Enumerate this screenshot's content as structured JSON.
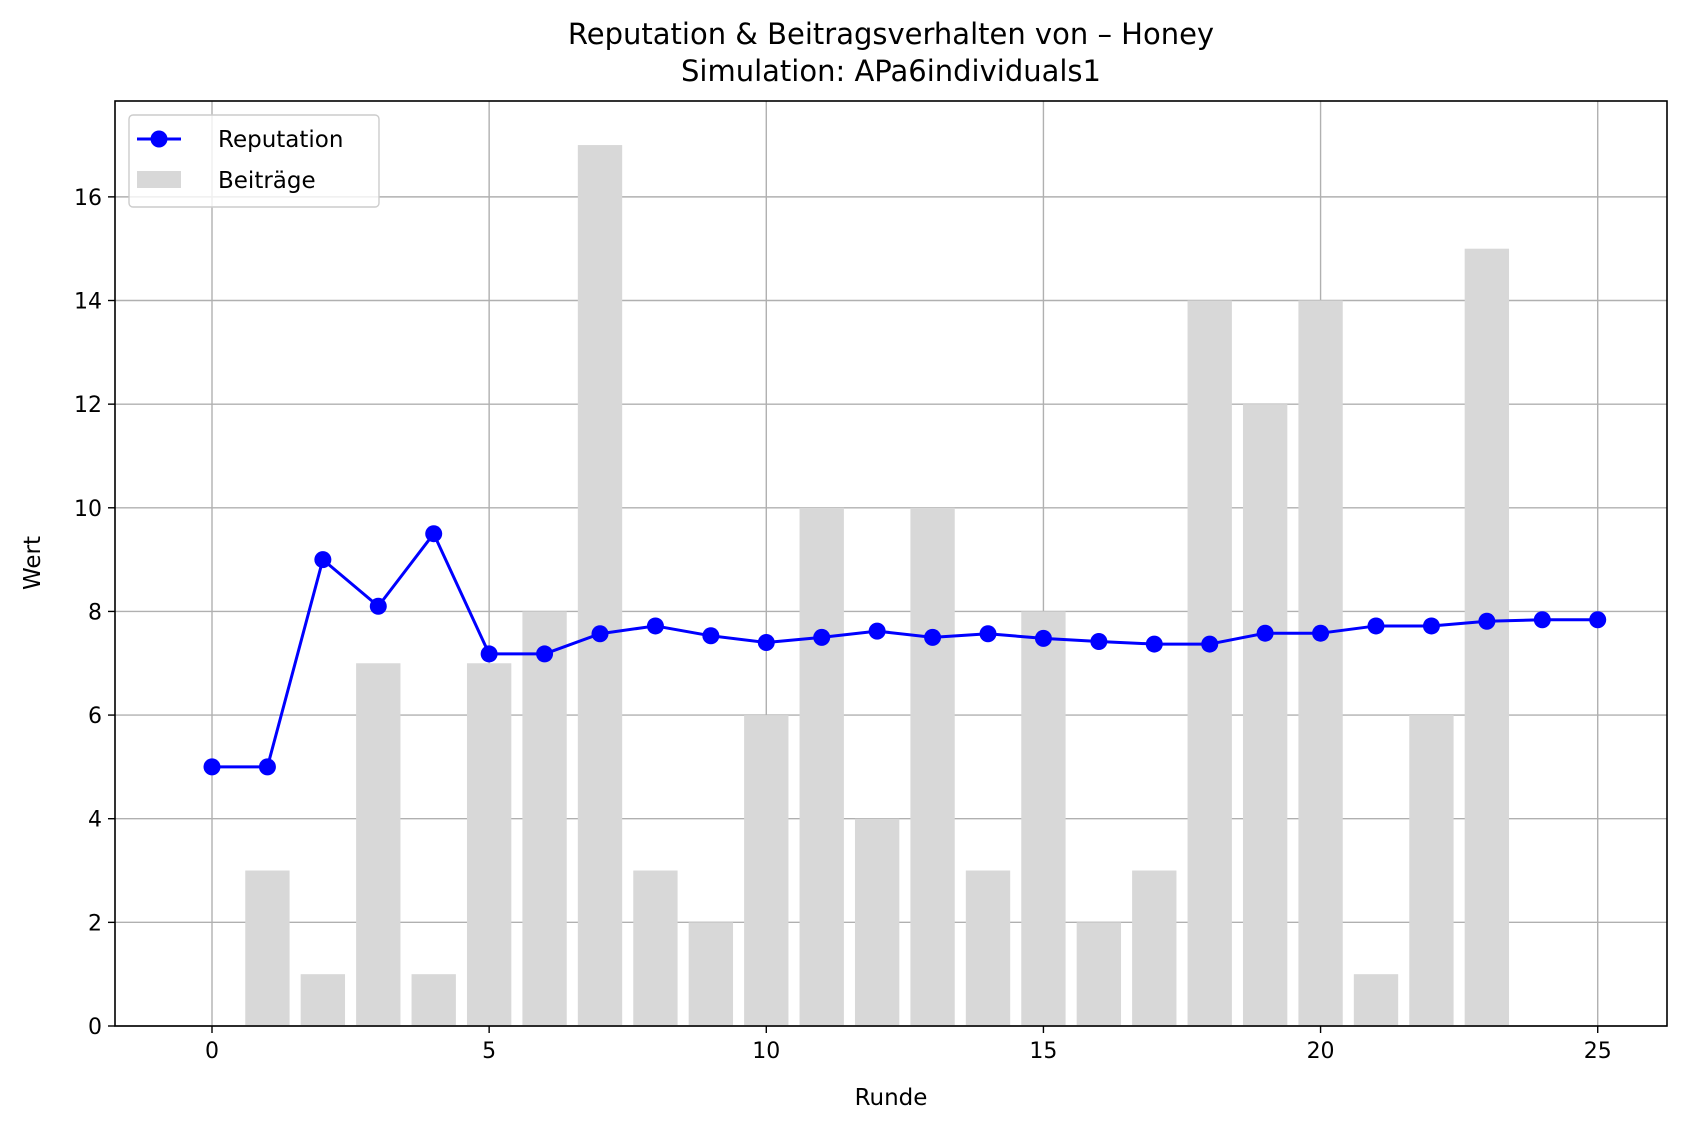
{
  "chart_data": {
    "type": "bar+line",
    "title": "Reputation & Beitragsverhalten von – Honey",
    "subtitle": "Simulation: APa6individuals1",
    "xlabel": "Runde",
    "ylabel": "Wert",
    "xlim": [
      -1.75,
      26.25
    ],
    "ylim": [
      0,
      17.85
    ],
    "xticks": [
      0,
      5,
      10,
      15,
      20,
      25
    ],
    "yticks": [
      0,
      2,
      4,
      6,
      8,
      10,
      12,
      14,
      16
    ],
    "grid": true,
    "legend_position": "top-left",
    "x": [
      0,
      1,
      2,
      3,
      4,
      5,
      6,
      7,
      8,
      9,
      10,
      11,
      12,
      13,
      14,
      15,
      16,
      17,
      18,
      19,
      20,
      21,
      22,
      23,
      24,
      25
    ],
    "series": [
      {
        "name": "Reputation",
        "kind": "line",
        "color": "#0000ff",
        "values": [
          5.0,
          5.0,
          9.0,
          8.1,
          9.5,
          7.18,
          7.18,
          7.57,
          7.72,
          7.53,
          7.4,
          7.5,
          7.62,
          7.5,
          7.57,
          7.48,
          7.42,
          7.37,
          7.37,
          7.58,
          7.58,
          7.72,
          7.72,
          7.81,
          7.84,
          7.84
        ]
      },
      {
        "name": "Beiträge",
        "kind": "bar",
        "color": "#d8d8d8",
        "values": [
          0,
          3,
          1,
          7,
          1,
          7,
          8,
          17,
          3,
          2,
          6,
          10,
          4,
          10,
          3,
          8,
          2,
          3,
          14,
          12,
          14,
          1,
          6,
          15,
          0,
          0
        ]
      }
    ]
  }
}
